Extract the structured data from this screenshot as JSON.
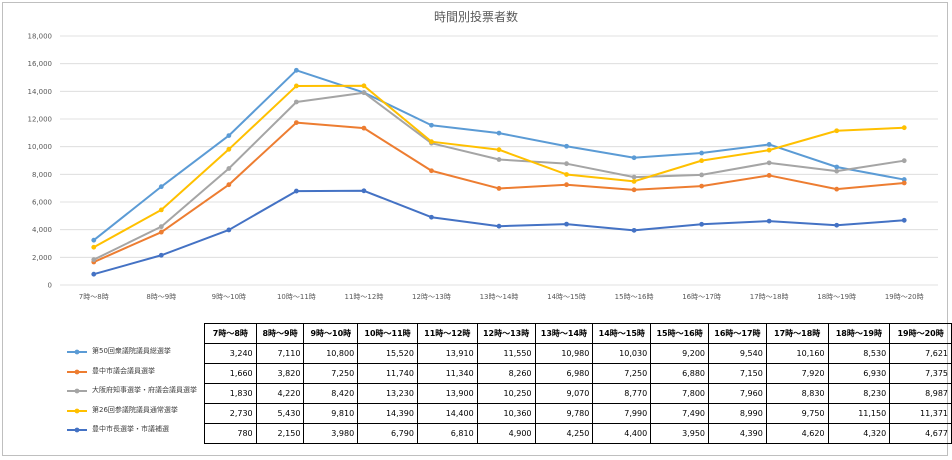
{
  "chart_data": {
    "type": "line",
    "title": "時間別投票者数",
    "categories": [
      "7時～8時",
      "8時～9時",
      "9時～10時",
      "10時～11時",
      "11時～12時",
      "12時～13時",
      "13時～14時",
      "14時～15時",
      "15時～16時",
      "16時～17時",
      "17時～18時",
      "18時～19時",
      "19時～20時"
    ],
    "ylim": [
      0,
      18000
    ],
    "yticks": [
      "0",
      "2,000",
      "4,000",
      "6,000",
      "8,000",
      "10,000",
      "12,000",
      "14,000",
      "16,000",
      "18,000"
    ],
    "grid": true,
    "legend": "bottom-left, with data table",
    "series": [
      {
        "name": "第50回衆議院議員総選挙",
        "color": "#5B9BD5",
        "values": [
          3240,
          7110,
          10800,
          15520,
          13910,
          11550,
          10980,
          10030,
          9200,
          9540,
          10160,
          8530,
          7621
        ],
        "labels": [
          "3,240",
          "7,110",
          "10,800",
          "15,520",
          "13,910",
          "11,550",
          "10,980",
          "10,030",
          "9,200",
          "9,540",
          "10,160",
          "8,530",
          "7,621"
        ]
      },
      {
        "name": "豊中市議会議員選挙",
        "color": "#ED7D31",
        "values": [
          1660,
          3820,
          7250,
          11740,
          11340,
          8260,
          6980,
          7250,
          6880,
          7150,
          7920,
          6930,
          7375
        ],
        "labels": [
          "1,660",
          "3,820",
          "7,250",
          "11,740",
          "11,340",
          "8,260",
          "6,980",
          "7,250",
          "6,880",
          "7,150",
          "7,920",
          "6,930",
          "7,375"
        ]
      },
      {
        "name": "大阪府知事選挙・府議会議員選挙",
        "color": "#A5A5A5",
        "values": [
          1830,
          4220,
          8420,
          13230,
          13900,
          10250,
          9070,
          8770,
          7800,
          7960,
          8830,
          8230,
          8987
        ],
        "labels": [
          "1,830",
          "4,220",
          "8,420",
          "13,230",
          "13,900",
          "10,250",
          "9,070",
          "8,770",
          "7,800",
          "7,960",
          "8,830",
          "8,230",
          "8,987"
        ]
      },
      {
        "name": "第26回参議院議員通常選挙",
        "color": "#FFC000",
        "values": [
          2730,
          5430,
          9810,
          14390,
          14400,
          10360,
          9780,
          7990,
          7490,
          8990,
          9750,
          11150,
          11371
        ],
        "labels": [
          "2,730",
          "5,430",
          "9,810",
          "14,390",
          "14,400",
          "10,360",
          "9,780",
          "7,990",
          "7,490",
          "8,990",
          "9,750",
          "11,150",
          "11,371"
        ]
      },
      {
        "name": "豊中市長選挙・市議補選",
        "color": "#4472C4",
        "values": [
          780,
          2150,
          3980,
          6790,
          6810,
          4900,
          4250,
          4400,
          3950,
          4390,
          4620,
          4320,
          4677
        ],
        "labels": [
          "780",
          "2,150",
          "3,980",
          "6,790",
          "6,810",
          "4,900",
          "4,250",
          "4,400",
          "3,950",
          "4,390",
          "4,620",
          "4,320",
          "4,677"
        ]
      }
    ]
  }
}
